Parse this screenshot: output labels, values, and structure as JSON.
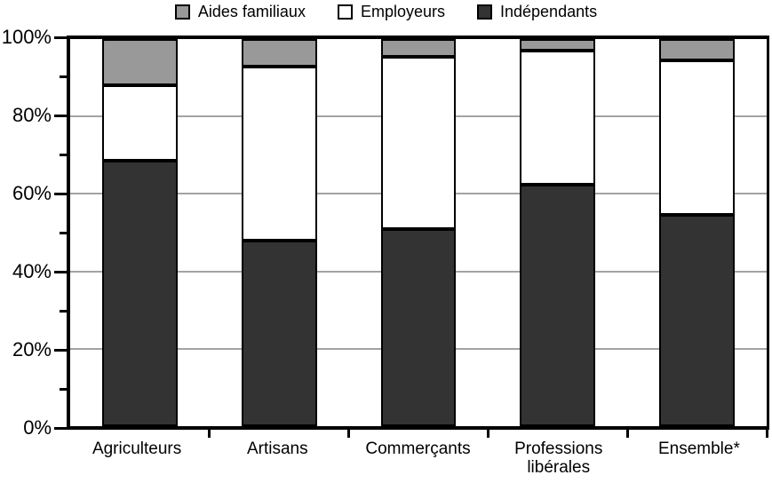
{
  "chart_data": {
    "type": "bar",
    "stacked": true,
    "title": "",
    "categories": [
      "Agriculteurs",
      "Artisans",
      "Commerçants",
      "Professions libérales",
      "Ensemble*"
    ],
    "series": [
      {
        "name": "Indépendants",
        "color": "#333333",
        "values": [
          68.5,
          48,
          51,
          62.5,
          54.5
        ]
      },
      {
        "name": "Employeurs",
        "color": "#ffffff",
        "values": [
          19.5,
          45,
          44.5,
          34.5,
          40
        ]
      },
      {
        "name": "Aides familiaux",
        "color": "#999999",
        "values": [
          12,
          7,
          4.5,
          3,
          5.5
        ]
      }
    ],
    "stack_order_bottom_to_top": [
      "Indépendants",
      "Employeurs",
      "Aides familiaux"
    ],
    "legend": {
      "position": "top",
      "items_left_to_right": [
        "Aides familiaux",
        "Employeurs",
        "Indépendants"
      ]
    },
    "y_axis": {
      "tick_labels": [
        "0%",
        "20%",
        "40%",
        "60%",
        "80%",
        "100%"
      ],
      "major_tick_step": 20,
      "minor_tick_step": 10,
      "ylim": [
        0,
        100
      ],
      "gridlines_at": [
        20,
        40,
        60,
        80
      ]
    },
    "x_axis": {
      "ticks_at_category_boundaries": true
    },
    "colors": {
      "grid": "#a3a3a3",
      "axis": "#000000",
      "segment_border": "#000000",
      "background": "#ffffff"
    }
  }
}
